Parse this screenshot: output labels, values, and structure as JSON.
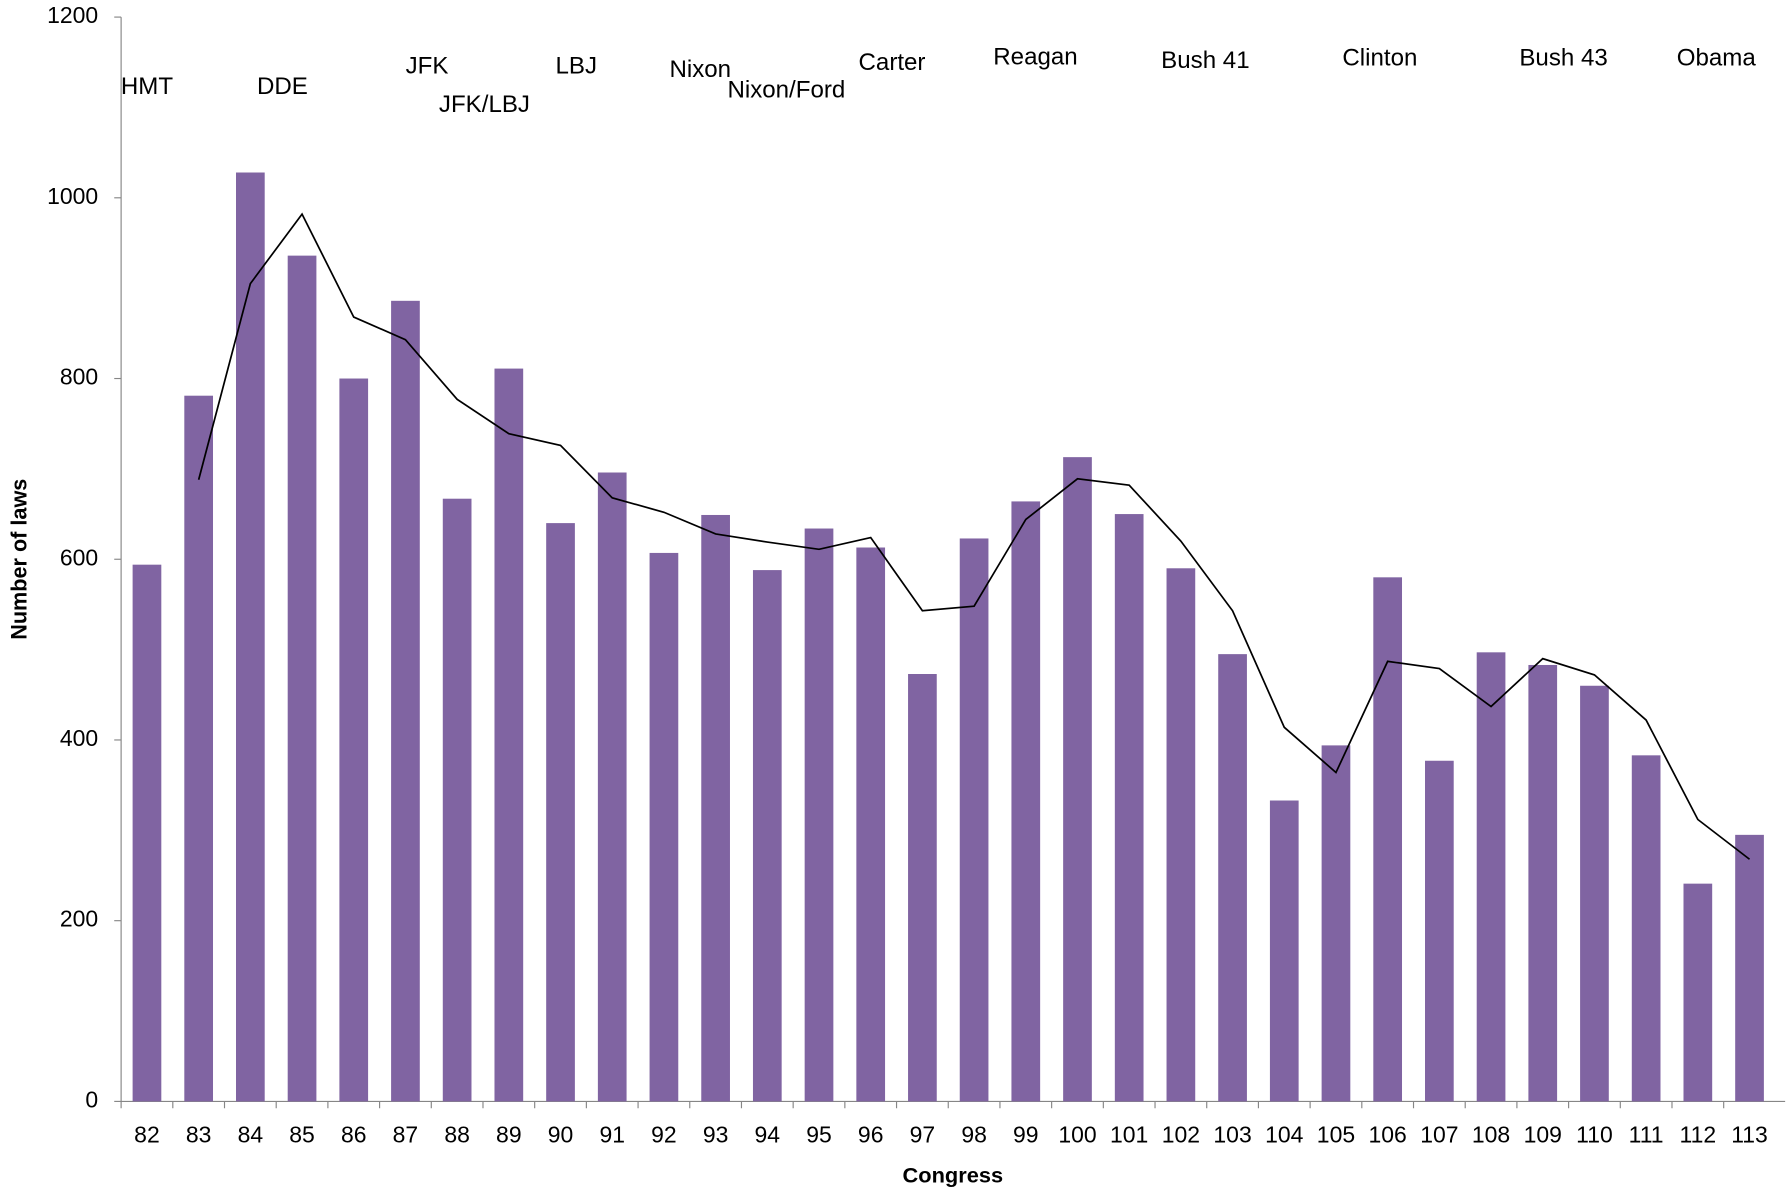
{
  "chart_data": {
    "type": "bar",
    "x_label": "Congress",
    "y_label": "Number of laws",
    "categories": [
      "82",
      "83",
      "84",
      "85",
      "86",
      "87",
      "88",
      "89",
      "90",
      "91",
      "92",
      "93",
      "94",
      "95",
      "96",
      "97",
      "98",
      "99",
      "100",
      "101",
      "102",
      "103",
      "104",
      "105",
      "106",
      "107",
      "108",
      "109",
      "110",
      "111",
      "112",
      "113"
    ],
    "series": [
      {
        "type": "bar",
        "color": "#8064a2",
        "values": [
          594,
          781,
          1028,
          936,
          800,
          886,
          667,
          811,
          640,
          696,
          607,
          649,
          588,
          634,
          613,
          473,
          623,
          664,
          713,
          650,
          590,
          495,
          333,
          394,
          580,
          377,
          497,
          483,
          460,
          383,
          241,
          295
        ]
      },
      {
        "type": "line",
        "color": "#000000",
        "values": [
          null,
          688,
          905,
          982,
          868,
          843,
          777,
          739,
          726,
          668,
          652,
          628,
          619,
          611,
          624,
          543,
          548,
          644,
          689,
          682,
          620,
          543,
          414,
          364,
          487,
          479,
          437,
          490,
          472,
          422,
          312,
          268
        ]
      }
    ],
    "annotations": [
      "HMT",
      "DDE",
      "JFK",
      "JFK/LBJ",
      "LBJ",
      "Nixon",
      "Nixon/Ford",
      "Carter",
      "Reagan",
      "Bush 41",
      "Clinton",
      "Bush 43",
      "Obama"
    ],
    "ylim": [
      0,
      1200
    ],
    "yticks": [
      0,
      200,
      400,
      600,
      800,
      1000,
      1200
    ],
    "grid": false
  }
}
